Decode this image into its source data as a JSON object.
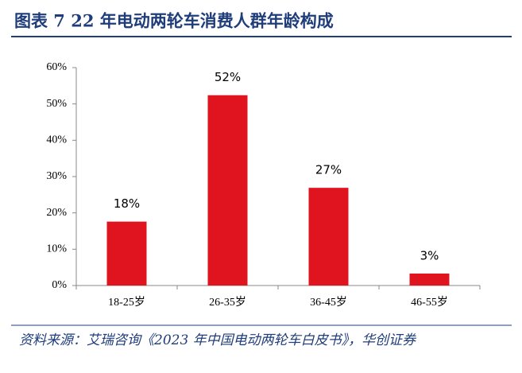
{
  "chart_data": {
    "type": "bar",
    "title": "图表 7  22 年电动两轮车消费人群年龄构成",
    "categories": [
      "18-25岁",
      "26-35岁",
      "36-45岁",
      "46-55岁"
    ],
    "values": [
      17.6,
      52.4,
      26.9,
      3.3
    ],
    "value_labels": [
      "18%",
      "52%",
      "27%",
      "3%"
    ],
    "color": "#e0141e",
    "ylim": [
      0,
      60
    ],
    "yticks": [
      {
        "value": 0,
        "label": "0%"
      },
      {
        "value": 10,
        "label": "10%"
      },
      {
        "value": 20,
        "label": "20%"
      },
      {
        "value": 30,
        "label": "30%"
      },
      {
        "value": 40,
        "label": "40%"
      },
      {
        "value": 50,
        "label": "50%"
      },
      {
        "value": 60,
        "label": "60%"
      }
    ],
    "grid": false,
    "source": "资料来源：艾瑞咨询《2023 年中国电动两轮车白皮书》，华创证券"
  }
}
